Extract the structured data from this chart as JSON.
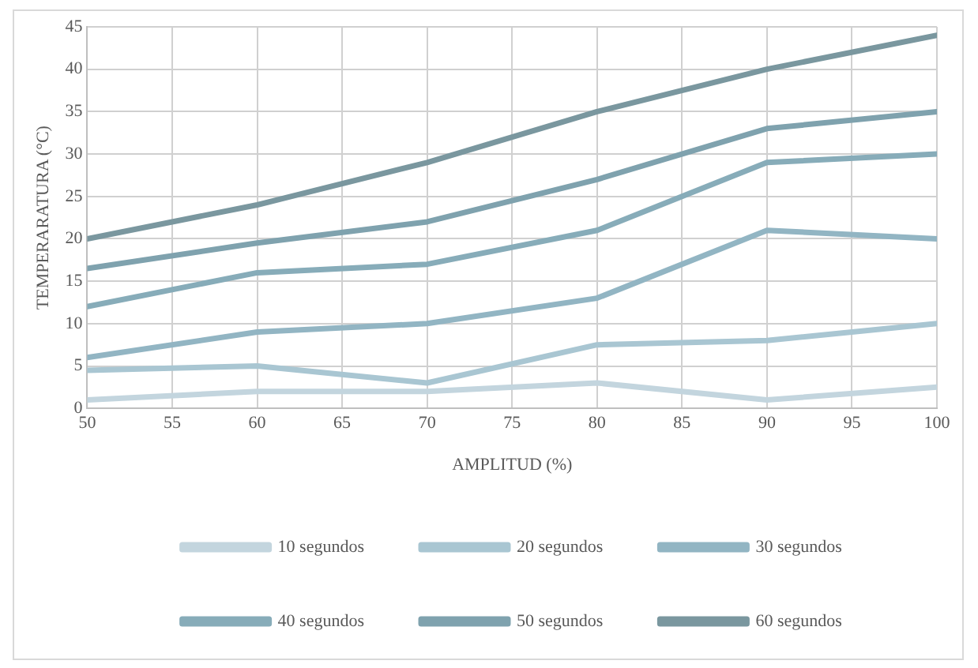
{
  "chart_data": {
    "type": "line",
    "xlabel": "AMPLITUD (%)",
    "ylabel": "TEMPERARATURA (°C)",
    "x": [
      50,
      60,
      70,
      80,
      90,
      100
    ],
    "xlim": [
      50,
      100
    ],
    "xticks": [
      50,
      55,
      60,
      65,
      70,
      75,
      80,
      85,
      90,
      95,
      100
    ],
    "ylim": [
      0,
      45
    ],
    "yticks": [
      0,
      5,
      10,
      15,
      20,
      25,
      30,
      35,
      40,
      45
    ],
    "grid": true,
    "legend": "bottom",
    "marker": "none",
    "line_style": "solid",
    "series": [
      {
        "name": "10 segundos",
        "color": "#c3d5de",
        "values": [
          1,
          2,
          2,
          3,
          1,
          2.5
        ]
      },
      {
        "name": "20 segundos",
        "color": "#a9c6d2",
        "values": [
          4.5,
          5,
          3,
          7.5,
          8,
          10
        ]
      },
      {
        "name": "30 segundos",
        "color": "#92b5c3",
        "values": [
          6,
          9,
          10,
          13,
          21,
          20
        ]
      },
      {
        "name": "40 segundos",
        "color": "#87acb9",
        "values": [
          12,
          16,
          17,
          21,
          29,
          30
        ]
      },
      {
        "name": "50 segundos",
        "color": "#7fa2ae",
        "values": [
          16.5,
          19.5,
          22,
          27,
          33,
          35
        ]
      },
      {
        "name": "60 segundos",
        "color": "#7a979f",
        "values": [
          20,
          24,
          29,
          35,
          40,
          44
        ]
      }
    ]
  }
}
